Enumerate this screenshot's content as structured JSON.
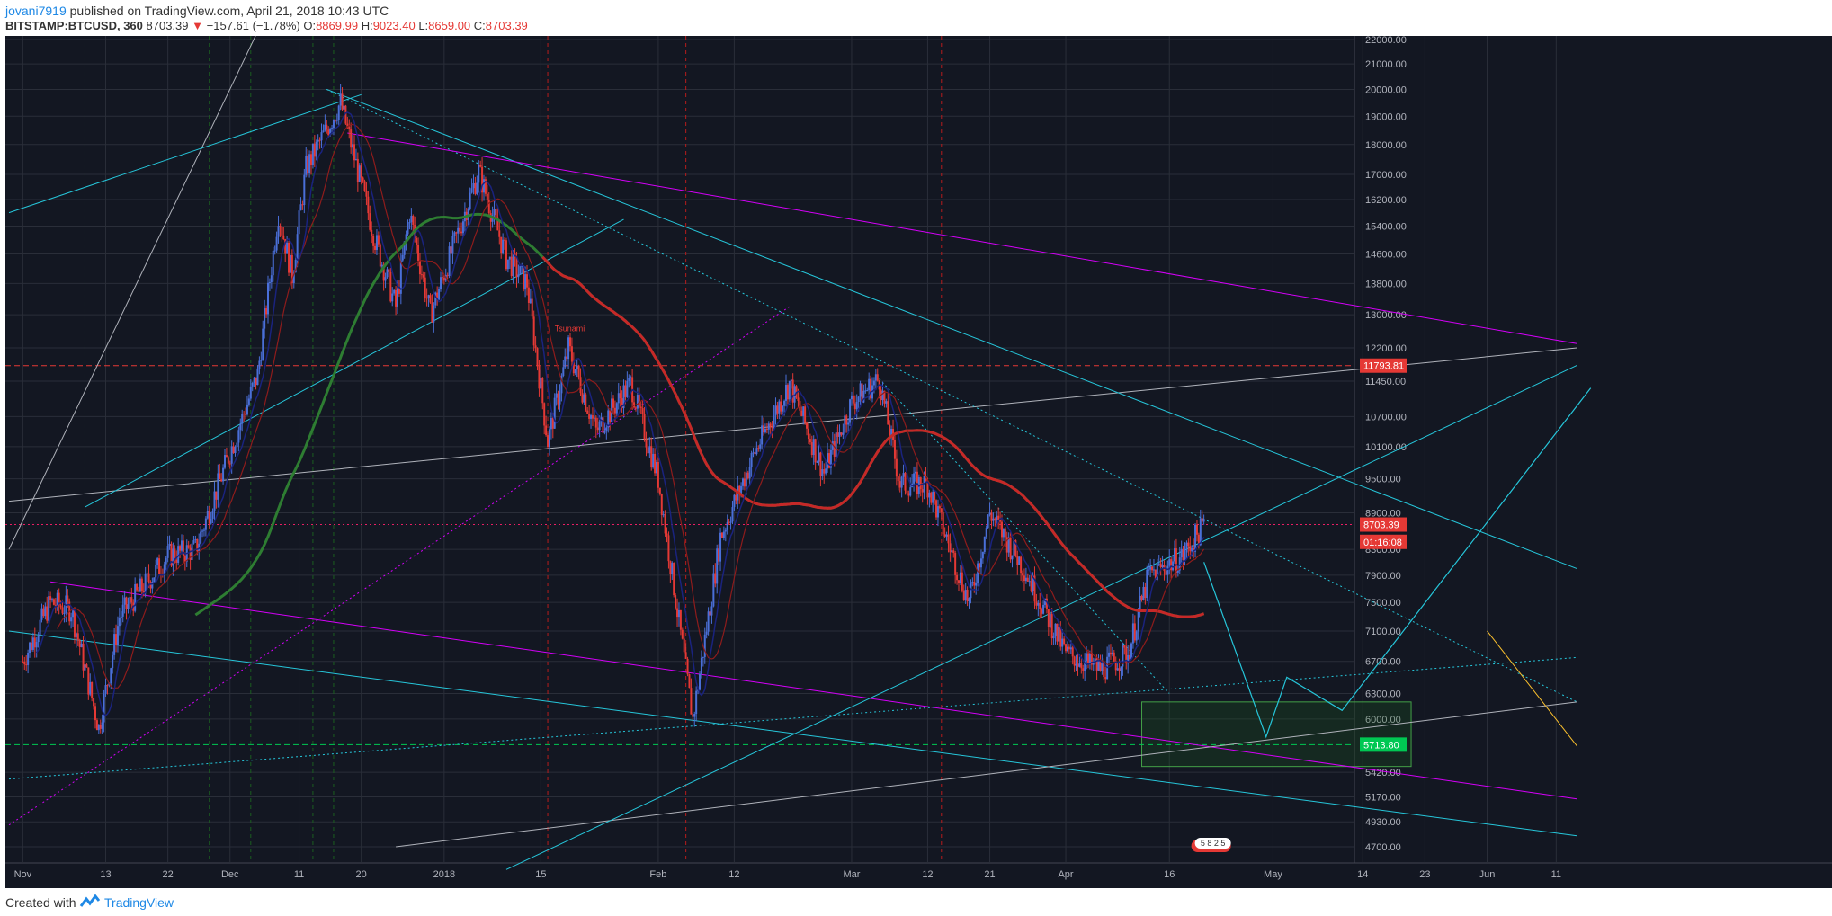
{
  "header": {
    "author": "jovani7919",
    "published": "published on TradingView.com, April 21, 2018 10:43 UTC",
    "symbol": "BITSTAMP:BTCUSD, 360",
    "last": "8703.39",
    "change": "−157.61 (−1.78%)",
    "o_label": "O:",
    "o_value": "8869.99",
    "h_label": "H:",
    "h_value": "9023.40",
    "l_label": "L:",
    "l_value": "8659.00",
    "c_label": "C:",
    "c_value": "8703.39"
  },
  "footer": {
    "created_with": "Created with",
    "brand": "TradingView"
  },
  "colors": {
    "background": "#131722",
    "grid": "#2a2e39",
    "cyan": "#26c6da",
    "magenta": "#d500f9",
    "gray": "#b0b3bb",
    "ma_red": "#c62828",
    "ma_green": "#2e7d32",
    "up": "#3f51b5",
    "down": "#e53935",
    "yellow": "#fbc02d"
  },
  "chart_data": {
    "type": "candlestick",
    "title": "",
    "xlabel": "",
    "ylabel": "",
    "ylim": [
      4700,
      22000
    ],
    "y_scale": "log",
    "y_ticks": [
      "22000.00",
      "21000.00",
      "20000.00",
      "19000.00",
      "18000.00",
      "17000.00",
      "16200.00",
      "15400.00",
      "14600.00",
      "13800.00",
      "13000.00",
      "12200.00",
      "11450.00",
      "10700.00",
      "10100.00",
      "9500.00",
      "8900.00",
      "8300.00",
      "7900.00",
      "7500.00",
      "7100.00",
      "6700.00",
      "6300.00",
      "6000.00",
      "5420.00",
      "5170.00",
      "4930.00",
      "4700.00"
    ],
    "x_ticks": [
      "Nov",
      "13",
      "22",
      "Dec",
      "11",
      "20",
      "2018",
      "15",
      "Feb",
      "12",
      "Mar",
      "12",
      "21",
      "Apr",
      "16",
      "May",
      "14",
      "23",
      "Jun",
      "11"
    ],
    "price_labels": [
      {
        "text": "11793.81",
        "value": 11793.81,
        "color": "#e53935"
      },
      {
        "text": "8703.39",
        "value": 8703.39,
        "color": "#e53935"
      },
      {
        "text": "01:16:08",
        "value": 8420,
        "color": "#e53935"
      },
      {
        "text": "5713.80",
        "value": 5713.8,
        "color": "#00c853"
      }
    ],
    "horizontal_levels": [
      {
        "value": 11793.81,
        "color": "#e53935",
        "style": "dashed"
      },
      {
        "value": 8703.39,
        "color": "#e91e63",
        "style": "dotted"
      },
      {
        "value": 5713.8,
        "color": "#00c853",
        "style": "dashed"
      }
    ],
    "zone": {
      "x_start": "2018-04-12",
      "x_end": "2018-05-21",
      "y_low": 5480,
      "y_high": 6200,
      "color": "#2e7d32"
    },
    "annotation_badge": "5 8 2 5",
    "annotation_text": "Tsunami",
    "price_path": [
      {
        "date": "2017-11-01",
        "price": 6700
      },
      {
        "date": "2017-11-05",
        "price": 7500
      },
      {
        "date": "2017-11-08",
        "price": 7400
      },
      {
        "date": "2017-11-12",
        "price": 5900
      },
      {
        "date": "2017-11-15",
        "price": 7300
      },
      {
        "date": "2017-11-22",
        "price": 8200
      },
      {
        "date": "2017-11-26",
        "price": 8300
      },
      {
        "date": "2017-12-01",
        "price": 10000
      },
      {
        "date": "2017-12-05",
        "price": 11600
      },
      {
        "date": "2017-12-08",
        "price": 15800
      },
      {
        "date": "2017-12-10",
        "price": 14000
      },
      {
        "date": "2017-12-12",
        "price": 17200
      },
      {
        "date": "2017-12-17",
        "price": 19500
      },
      {
        "date": "2017-12-22",
        "price": 15000
      },
      {
        "date": "2017-12-25",
        "price": 13200
      },
      {
        "date": "2017-12-27",
        "price": 15800
      },
      {
        "date": "2017-12-30",
        "price": 13000
      },
      {
        "date": "2018-01-06",
        "price": 17100
      },
      {
        "date": "2018-01-10",
        "price": 14500
      },
      {
        "date": "2018-01-13",
        "price": 13800
      },
      {
        "date": "2018-01-16",
        "price": 10200
      },
      {
        "date": "2018-01-19",
        "price": 12200
      },
      {
        "date": "2018-01-23",
        "price": 10400
      },
      {
        "date": "2018-01-28",
        "price": 11400
      },
      {
        "date": "2018-02-01",
        "price": 9500
      },
      {
        "date": "2018-02-06",
        "price": 6000
      },
      {
        "date": "2018-02-10",
        "price": 8500
      },
      {
        "date": "2018-02-15",
        "price": 10000
      },
      {
        "date": "2018-02-20",
        "price": 11400
      },
      {
        "date": "2018-02-25",
        "price": 9600
      },
      {
        "date": "2018-03-01",
        "price": 11000
      },
      {
        "date": "2018-03-05",
        "price": 11500
      },
      {
        "date": "2018-03-08",
        "price": 9400
      },
      {
        "date": "2018-03-12",
        "price": 9400
      },
      {
        "date": "2018-03-18",
        "price": 7500
      },
      {
        "date": "2018-03-21",
        "price": 8900
      },
      {
        "date": "2018-03-26",
        "price": 8000
      },
      {
        "date": "2018-04-01",
        "price": 6800
      },
      {
        "date": "2018-04-06",
        "price": 6600
      },
      {
        "date": "2018-04-10",
        "price": 6800
      },
      {
        "date": "2018-04-13",
        "price": 7900
      },
      {
        "date": "2018-04-18",
        "price": 8200
      },
      {
        "date": "2018-04-21",
        "price": 8700
      }
    ],
    "projection": [
      {
        "date": "2018-04-21",
        "price": 8100
      },
      {
        "date": "2018-04-30",
        "price": 5800
      },
      {
        "date": "2018-05-03",
        "price": 6500
      },
      {
        "date": "2018-05-11",
        "price": 6100
      },
      {
        "date": "2018-06-16",
        "price": 11300
      }
    ]
  }
}
